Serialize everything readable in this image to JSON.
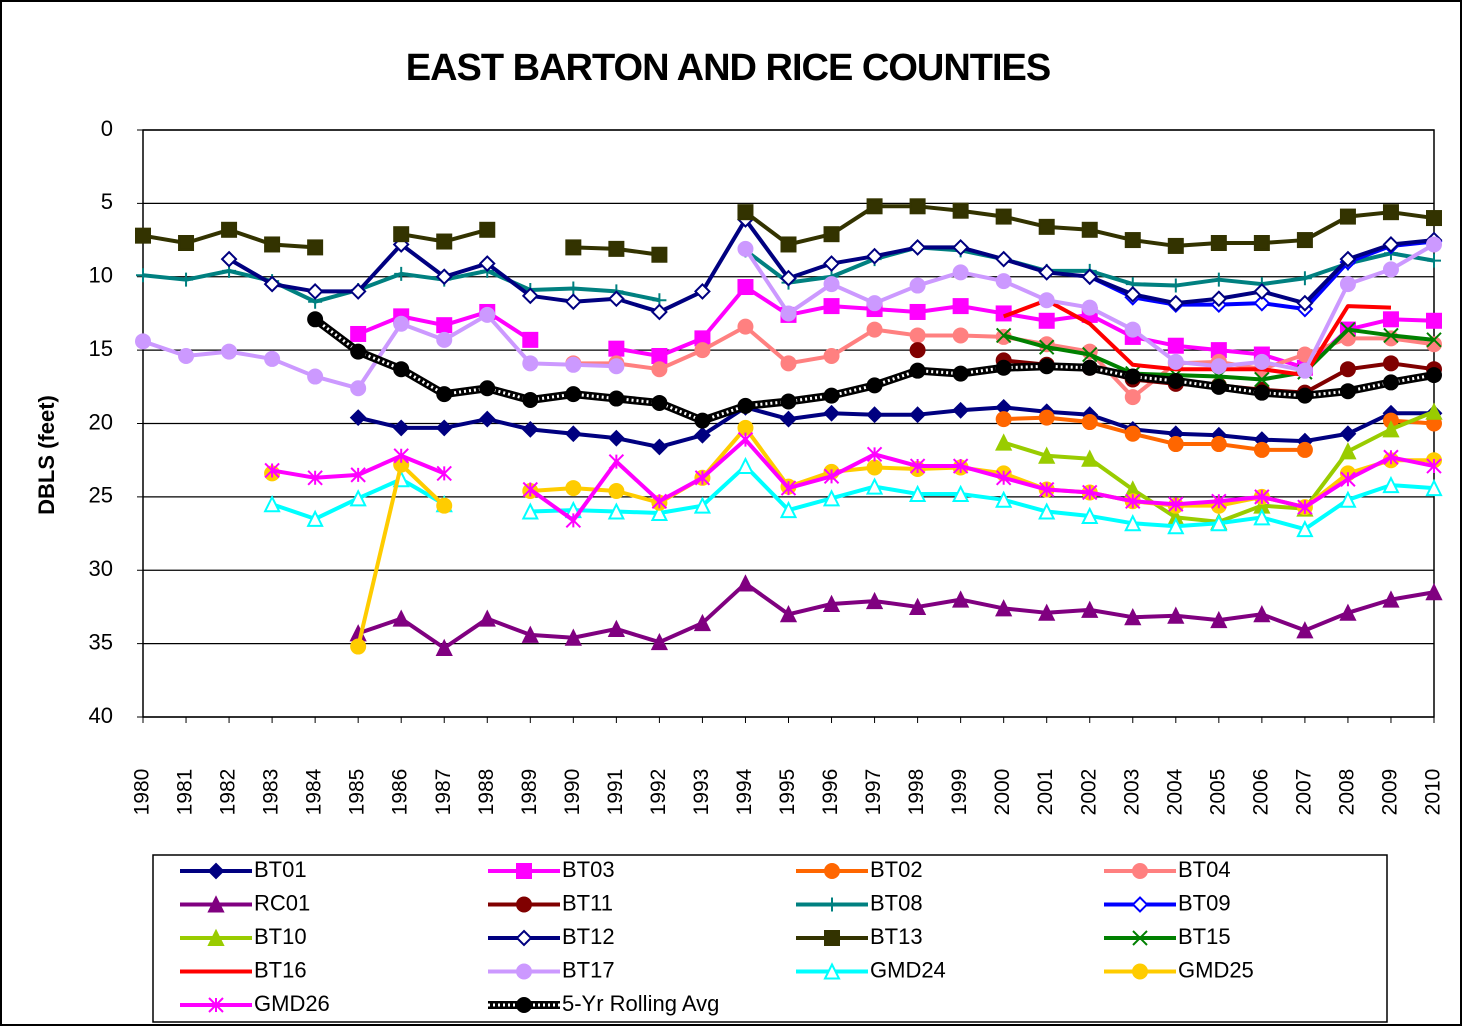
{
  "chart_data": {
    "type": "line",
    "title": "EAST BARTON AND RICE COUNTIES",
    "y_label": "DBLS (feet)",
    "categories": [
      "1980",
      "1981",
      "1982",
      "1983",
      "1984",
      "1985",
      "1986",
      "1987",
      "1988",
      "1989",
      "1990",
      "1991",
      "1992",
      "1993",
      "1994",
      "1995",
      "1996",
      "1997",
      "1998",
      "1999",
      "2000",
      "2001",
      "2002",
      "2003",
      "2004",
      "2005",
      "2006",
      "2007",
      "2008",
      "2009",
      "2010"
    ],
    "ylim": [
      0,
      40
    ],
    "yticks": [
      0,
      5,
      10,
      15,
      20,
      25,
      30,
      35,
      40
    ],
    "y_inverted": true,
    "grid": true,
    "series": [
      {
        "name": "BT01",
        "color": "#000080",
        "marker": "diamond",
        "values": [
          null,
          null,
          null,
          null,
          null,
          19.6,
          20.3,
          20.3,
          19.7,
          20.4,
          20.7,
          21.0,
          21.6,
          20.8,
          18.9,
          19.7,
          19.3,
          19.4,
          19.4,
          19.1,
          18.9,
          19.2,
          19.4,
          20.4,
          20.7,
          20.8,
          21.1,
          21.2,
          20.7,
          19.3,
          19.3
        ]
      },
      {
        "name": "BT03",
        "color": "#ff00ff",
        "marker": "square",
        "values": [
          null,
          null,
          null,
          null,
          null,
          13.9,
          12.7,
          13.3,
          12.4,
          14.3,
          null,
          14.9,
          15.4,
          14.2,
          10.7,
          12.6,
          12.0,
          12.2,
          12.4,
          12.0,
          12.5,
          13.0,
          12.6,
          14.1,
          14.7,
          15.0,
          15.3,
          16.2,
          13.6,
          12.9,
          13.0
        ]
      },
      {
        "name": "BT02",
        "color": "#ff6600",
        "marker": "circle",
        "values": [
          null,
          null,
          null,
          null,
          null,
          null,
          null,
          null,
          null,
          null,
          null,
          null,
          null,
          null,
          null,
          null,
          null,
          null,
          null,
          null,
          19.7,
          19.6,
          19.9,
          20.7,
          21.4,
          21.4,
          21.8,
          21.8,
          null,
          19.8,
          20.0
        ]
      },
      {
        "name": "BT04",
        "color": "#ff8080",
        "marker": "circle",
        "values": [
          null,
          null,
          null,
          null,
          null,
          null,
          null,
          null,
          null,
          null,
          15.9,
          15.9,
          16.3,
          15.0,
          13.4,
          15.9,
          15.4,
          13.6,
          14.0,
          14.0,
          14.1,
          14.6,
          15.1,
          18.2,
          15.9,
          15.8,
          16.3,
          15.3,
          14.2,
          14.2,
          14.6
        ]
      },
      {
        "name": "RC01",
        "color": "#800080",
        "marker": "triangle",
        "values": [
          null,
          null,
          null,
          null,
          null,
          34.3,
          33.3,
          35.3,
          33.3,
          34.4,
          34.6,
          34.0,
          34.9,
          33.6,
          30.9,
          33.0,
          32.3,
          32.1,
          32.5,
          32.0,
          32.6,
          32.9,
          32.7,
          33.2,
          33.1,
          33.4,
          33.0,
          34.1,
          32.9,
          32.0,
          31.5
        ]
      },
      {
        "name": "BT11",
        "color": "#800000",
        "marker": "circle",
        "values": [
          null,
          null,
          null,
          null,
          null,
          null,
          null,
          null,
          null,
          null,
          null,
          null,
          null,
          null,
          null,
          null,
          null,
          null,
          15.0,
          null,
          15.7,
          16.0,
          16.2,
          17.0,
          17.3,
          17.4,
          17.7,
          17.9,
          16.3,
          15.9,
          16.3
        ]
      },
      {
        "name": "BT08",
        "color": "#008080",
        "marker": "plus",
        "values": [
          9.9,
          10.2,
          9.6,
          10.3,
          11.7,
          10.9,
          9.8,
          10.2,
          9.6,
          10.9,
          10.8,
          11.0,
          11.6,
          null,
          8.2,
          10.4,
          10.0,
          8.8,
          8.0,
          8.2,
          8.8,
          9.6,
          9.6,
          10.5,
          10.6,
          10.2,
          10.5,
          10.1,
          9.1,
          8.4,
          8.9
        ]
      },
      {
        "name": "BT09",
        "color": "#0000ff",
        "marker": "open-diamond",
        "values": [
          null,
          null,
          null,
          null,
          null,
          null,
          null,
          null,
          null,
          null,
          null,
          null,
          null,
          null,
          null,
          null,
          null,
          null,
          null,
          null,
          null,
          null,
          10.0,
          11.4,
          11.9,
          11.9,
          11.8,
          12.2,
          9.0,
          7.9,
          7.6
        ]
      },
      {
        "name": "BT10",
        "color": "#99cc00",
        "marker": "triangle",
        "values": [
          null,
          null,
          null,
          null,
          null,
          null,
          null,
          null,
          null,
          null,
          null,
          null,
          null,
          null,
          null,
          null,
          null,
          null,
          null,
          null,
          21.3,
          22.2,
          22.4,
          24.5,
          26.4,
          26.7,
          25.6,
          25.8,
          21.9,
          20.4,
          19.2
        ]
      },
      {
        "name": "BT12",
        "color": "#000080",
        "marker": "open-diamond",
        "values": [
          null,
          null,
          8.8,
          10.5,
          11.0,
          11.0,
          7.8,
          10.0,
          9.1,
          11.3,
          11.7,
          11.5,
          12.4,
          11.0,
          6.1,
          10.1,
          9.1,
          8.6,
          8.0,
          8.0,
          8.8,
          9.7,
          10.0,
          11.2,
          11.8,
          11.5,
          11.0,
          11.8,
          8.8,
          7.8,
          7.5
        ]
      },
      {
        "name": "BT13",
        "color": "#333300",
        "marker": "square",
        "values": [
          7.2,
          7.7,
          6.8,
          7.8,
          8.0,
          null,
          7.1,
          7.6,
          6.8,
          null,
          8.0,
          8.1,
          8.5,
          null,
          5.6,
          7.8,
          7.1,
          5.2,
          5.2,
          5.5,
          5.9,
          6.6,
          6.8,
          7.5,
          7.9,
          7.7,
          7.7,
          7.5,
          5.9,
          5.6,
          6.0
        ]
      },
      {
        "name": "BT15",
        "color": "#008000",
        "marker": "x",
        "values": [
          null,
          null,
          null,
          null,
          null,
          null,
          null,
          null,
          null,
          null,
          null,
          null,
          null,
          null,
          null,
          null,
          null,
          null,
          null,
          null,
          14.0,
          14.8,
          15.3,
          16.6,
          16.7,
          16.8,
          17.0,
          16.5,
          13.6,
          14.0,
          14.3
        ]
      },
      {
        "name": "BT16",
        "color": "#ff0000",
        "marker": "none",
        "values": [
          null,
          null,
          null,
          null,
          null,
          null,
          null,
          null,
          null,
          null,
          null,
          null,
          null,
          null,
          null,
          null,
          null,
          null,
          null,
          null,
          12.7,
          11.6,
          13.2,
          16.0,
          16.3,
          16.3,
          16.3,
          16.7,
          12.0,
          12.1,
          null
        ]
      },
      {
        "name": "BT17",
        "color": "#cc99ff",
        "marker": "circle",
        "values": [
          14.4,
          15.4,
          15.1,
          15.6,
          16.8,
          17.6,
          13.2,
          14.3,
          12.6,
          15.9,
          16.0,
          16.1,
          null,
          null,
          8.1,
          12.5,
          10.5,
          11.8,
          10.6,
          9.7,
          10.3,
          11.6,
          12.1,
          13.6,
          15.8,
          16.1,
          15.8,
          16.4,
          10.5,
          9.5,
          7.8
        ]
      },
      {
        "name": "GMD24",
        "color": "#00ffff",
        "marker": "open-triangle",
        "values": [
          null,
          null,
          null,
          25.5,
          26.5,
          25.1,
          23.8,
          25.5,
          null,
          26.0,
          25.9,
          26.0,
          26.1,
          25.6,
          22.9,
          25.9,
          25.1,
          24.3,
          24.8,
          24.8,
          25.2,
          26.0,
          26.3,
          26.8,
          27.0,
          26.8,
          26.4,
          27.2,
          25.2,
          24.2,
          24.4
        ]
      },
      {
        "name": "GMD25",
        "color": "#ffcc00",
        "marker": "circle",
        "values": [
          null,
          null,
          null,
          23.4,
          null,
          35.2,
          22.8,
          25.6,
          null,
          24.6,
          24.4,
          24.6,
          25.4,
          23.7,
          20.3,
          24.3,
          23.3,
          23.0,
          23.1,
          23.0,
          23.4,
          24.5,
          24.7,
          25.3,
          25.6,
          25.6,
          25.0,
          25.7,
          23.4,
          22.5,
          22.5
        ]
      },
      {
        "name": "GMD26",
        "color": "#ff00ff",
        "marker": "star",
        "values": [
          null,
          null,
          null,
          23.2,
          23.7,
          23.5,
          22.2,
          23.4,
          null,
          24.5,
          26.6,
          22.6,
          25.3,
          23.7,
          21.1,
          24.4,
          23.6,
          22.1,
          22.9,
          22.9,
          23.7,
          24.5,
          24.7,
          25.3,
          25.5,
          25.3,
          25.0,
          25.7,
          23.8,
          22.3,
          22.9
        ]
      },
      {
        "name": "5-Yr Rolling Avg",
        "color": "#000000",
        "marker": "circle",
        "dotted": true,
        "values": [
          null,
          null,
          null,
          null,
          12.9,
          15.1,
          16.3,
          18.0,
          17.6,
          18.4,
          18.0,
          18.3,
          18.6,
          19.8,
          18.8,
          18.5,
          18.1,
          17.4,
          16.4,
          16.6,
          16.2,
          16.1,
          16.2,
          16.8,
          17.1,
          17.5,
          17.9,
          18.1,
          17.8,
          17.2,
          16.7
        ]
      }
    ]
  }
}
